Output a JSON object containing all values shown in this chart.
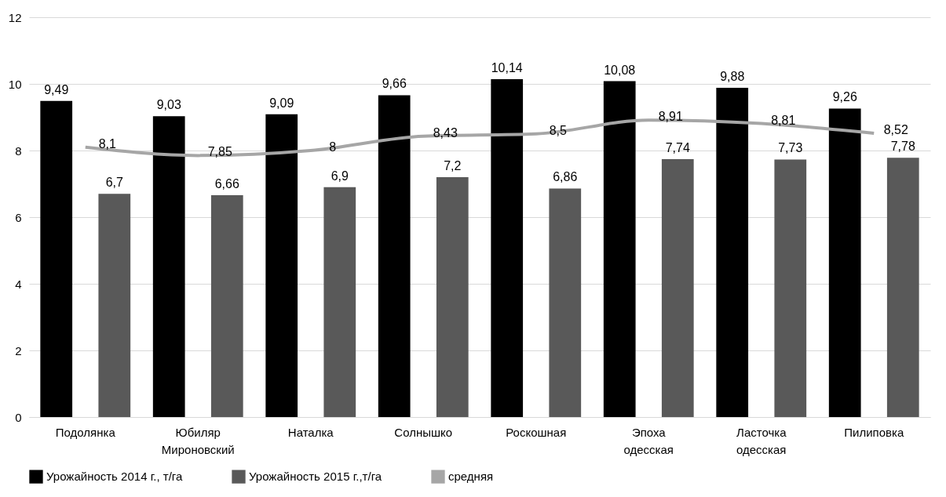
{
  "chart_data": {
    "type": "bar",
    "categories": [
      "Подолянка",
      "Юбиляр Мироновский",
      "Наталка",
      "Солнышко",
      "Роскошная",
      "Эпоха одесская",
      "Ласточка одесская",
      "Пилиповка"
    ],
    "series": [
      {
        "name": "Урожайность 2014 г., т/га",
        "color": "#000000",
        "values": [
          9.49,
          9.03,
          9.09,
          9.66,
          10.14,
          10.08,
          9.88,
          9.26
        ],
        "value_labels": [
          "9,49",
          "9,03",
          "9,09",
          "9,66",
          "10,14",
          "10,08",
          "9,88",
          "9,26"
        ]
      },
      {
        "name": "Урожайность 2015 г.,т/га",
        "color": "#595959",
        "values": [
          6.7,
          6.66,
          6.9,
          7.2,
          6.86,
          7.74,
          7.73,
          7.78
        ],
        "value_labels": [
          "6,7",
          "6,66",
          "6,9",
          "7,2",
          "6,86",
          "7,74",
          "7,73",
          "7,78"
        ]
      },
      {
        "name": "средняя",
        "type": "line",
        "color": "#a6a6a6",
        "values": [
          8.1,
          7.85,
          8,
          8.43,
          8.5,
          8.91,
          8.81,
          8.52
        ],
        "value_labels": [
          "8,1",
          "7,85",
          "8",
          "8,43",
          "8,5",
          "8,91",
          "8,81",
          "8,52"
        ]
      }
    ],
    "ylim": [
      0,
      12
    ],
    "yticks": [
      0,
      2,
      4,
      6,
      8,
      10,
      12
    ],
    "grid": "y",
    "legend": "bottom",
    "marker": "none"
  }
}
